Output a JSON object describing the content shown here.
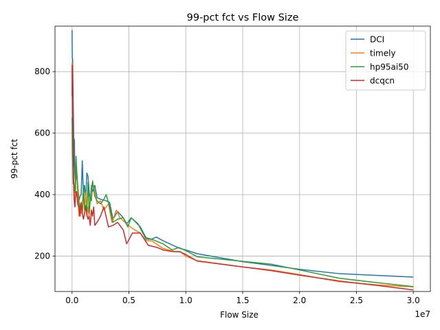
{
  "chart_data": {
    "type": "line",
    "title": "99-pct fct vs Flow Size",
    "xlabel": "Flow Size",
    "ylabel": "99-pct fct",
    "x_offset_text": "1e7",
    "xlim": [
      -1500000,
      31500000
    ],
    "ylim": [
      85,
      948
    ],
    "x_ticks": [
      0,
      5000000,
      10000000,
      15000000,
      20000000,
      25000000,
      30000000
    ],
    "x_tick_labels": [
      "0.0",
      "0.5",
      "1.0",
      "1.5",
      "2.0",
      "2.5",
      "3.0"
    ],
    "y_ticks": [
      200,
      400,
      600,
      800
    ],
    "y_tick_labels": [
      "200",
      "400",
      "600",
      "800"
    ],
    "grid": true,
    "legend_position": "top-right",
    "series": [
      {
        "name": "DCI",
        "color": "#1f77b4",
        "points": [
          [
            1000,
            935
          ],
          [
            10000,
            880
          ],
          [
            20000,
            845
          ],
          [
            50000,
            840
          ],
          [
            80000,
            760
          ],
          [
            100000,
            700
          ],
          [
            130000,
            640
          ],
          [
            150000,
            550
          ],
          [
            180000,
            490
          ],
          [
            200000,
            580
          ],
          [
            250000,
            470
          ],
          [
            300000,
            435
          ],
          [
            400000,
            470
          ],
          [
            500000,
            420
          ],
          [
            600000,
            380
          ],
          [
            700000,
            395
          ],
          [
            800000,
            400
          ],
          [
            900000,
            510
          ],
          [
            1000000,
            400
          ],
          [
            1100000,
            430
          ],
          [
            1200000,
            380
          ],
          [
            1300000,
            470
          ],
          [
            1400000,
            460
          ],
          [
            1500000,
            410
          ],
          [
            1600000,
            380
          ],
          [
            1700000,
            430
          ],
          [
            1800000,
            410
          ],
          [
            2000000,
            430
          ],
          [
            2200000,
            390
          ],
          [
            2500000,
            385
          ],
          [
            3000000,
            380
          ],
          [
            3300000,
            375
          ],
          [
            3600000,
            320
          ],
          [
            4000000,
            345
          ],
          [
            4500000,
            325
          ],
          [
            4800000,
            305
          ],
          [
            5200000,
            325
          ],
          [
            6000000,
            295
          ],
          [
            6500000,
            260
          ],
          [
            7000000,
            255
          ],
          [
            7400000,
            262
          ],
          [
            8000000,
            250
          ],
          [
            9000000,
            233
          ],
          [
            9500000,
            225
          ],
          [
            10000000,
            220
          ],
          [
            11000000,
            208
          ],
          [
            15000000,
            182
          ],
          [
            17500000,
            170
          ],
          [
            20000000,
            157
          ],
          [
            23500000,
            143
          ],
          [
            27000000,
            137
          ],
          [
            30000000,
            132
          ]
        ]
      },
      {
        "name": "timely",
        "color": "#ff7f0e",
        "points": [
          [
            1000,
            830
          ],
          [
            10000,
            810
          ],
          [
            20000,
            650
          ],
          [
            50000,
            620
          ],
          [
            80000,
            560
          ],
          [
            100000,
            540
          ],
          [
            130000,
            470
          ],
          [
            150000,
            440
          ],
          [
            180000,
            420
          ],
          [
            200000,
            370
          ],
          [
            250000,
            420
          ],
          [
            300000,
            440
          ],
          [
            400000,
            490
          ],
          [
            500000,
            400
          ],
          [
            600000,
            330
          ],
          [
            700000,
            370
          ],
          [
            800000,
            340
          ],
          [
            900000,
            340
          ],
          [
            1000000,
            400
          ],
          [
            1100000,
            350
          ],
          [
            1200000,
            410
          ],
          [
            1300000,
            330
          ],
          [
            1400000,
            360
          ],
          [
            1500000,
            330
          ],
          [
            1600000,
            380
          ],
          [
            1800000,
            440
          ],
          [
            2000000,
            410
          ],
          [
            2200000,
            370
          ],
          [
            2500000,
            380
          ],
          [
            2800000,
            350
          ],
          [
            3200000,
            370
          ],
          [
            3500000,
            310
          ],
          [
            3900000,
            350
          ],
          [
            4200000,
            325
          ],
          [
            4800000,
            305
          ],
          [
            5300000,
            290
          ],
          [
            6000000,
            275
          ],
          [
            6500000,
            250
          ],
          [
            7000000,
            250
          ],
          [
            8000000,
            225
          ],
          [
            9000000,
            215
          ],
          [
            9500000,
            215
          ],
          [
            10000000,
            200
          ],
          [
            11000000,
            185
          ],
          [
            15000000,
            165
          ],
          [
            17500000,
            155
          ],
          [
            20000000,
            140
          ],
          [
            23500000,
            117
          ],
          [
            27000000,
            106
          ],
          [
            30000000,
            100
          ]
        ]
      },
      {
        "name": "hp95ai50",
        "color": "#2ca02c",
        "points": [
          [
            1000,
            650
          ],
          [
            10000,
            620
          ],
          [
            20000,
            540
          ],
          [
            50000,
            510
          ],
          [
            80000,
            470
          ],
          [
            100000,
            435
          ],
          [
            150000,
            445
          ],
          [
            200000,
            430
          ],
          [
            250000,
            420
          ],
          [
            300000,
            405
          ],
          [
            350000,
            525
          ],
          [
            400000,
            480
          ],
          [
            500000,
            430
          ],
          [
            600000,
            380
          ],
          [
            700000,
            350
          ],
          [
            800000,
            360
          ],
          [
            900000,
            345
          ],
          [
            1000000,
            430
          ],
          [
            1100000,
            350
          ],
          [
            1200000,
            365
          ],
          [
            1300000,
            345
          ],
          [
            1400000,
            440
          ],
          [
            1500000,
            340
          ],
          [
            1600000,
            390
          ],
          [
            1700000,
            380
          ],
          [
            1800000,
            445
          ],
          [
            2000000,
            395
          ],
          [
            2200000,
            380
          ],
          [
            2500000,
            370
          ],
          [
            2800000,
            385
          ],
          [
            3000000,
            400
          ],
          [
            3300000,
            360
          ],
          [
            3600000,
            310
          ],
          [
            4000000,
            320
          ],
          [
            4500000,
            325
          ],
          [
            4900000,
            295
          ],
          [
            5200000,
            325
          ],
          [
            5800000,
            305
          ],
          [
            6500000,
            255
          ],
          [
            7000000,
            255
          ],
          [
            8000000,
            240
          ],
          [
            8800000,
            220
          ],
          [
            9400000,
            228
          ],
          [
            10000000,
            218
          ],
          [
            11000000,
            198
          ],
          [
            15000000,
            183
          ],
          [
            17500000,
            174
          ],
          [
            20000000,
            155
          ],
          [
            23500000,
            128
          ],
          [
            27000000,
            113
          ],
          [
            30000000,
            101
          ]
        ]
      },
      {
        "name": "dcqcn",
        "color": "#d62728",
        "points": [
          [
            1000,
            720
          ],
          [
            10000,
            820
          ],
          [
            20000,
            750
          ],
          [
            50000,
            650
          ],
          [
            80000,
            600
          ],
          [
            100000,
            540
          ],
          [
            130000,
            500
          ],
          [
            150000,
            420
          ],
          [
            180000,
            390
          ],
          [
            200000,
            380
          ],
          [
            250000,
            360
          ],
          [
            300000,
            390
          ],
          [
            400000,
            410
          ],
          [
            500000,
            370
          ],
          [
            600000,
            360
          ],
          [
            700000,
            330
          ],
          [
            800000,
            375
          ],
          [
            900000,
            340
          ],
          [
            1000000,
            320
          ],
          [
            1100000,
            340
          ],
          [
            1200000,
            360
          ],
          [
            1300000,
            335
          ],
          [
            1400000,
            320
          ],
          [
            1500000,
            330
          ],
          [
            1600000,
            300
          ],
          [
            1700000,
            350
          ],
          [
            1800000,
            330
          ],
          [
            1900000,
            360
          ],
          [
            2000000,
            300
          ],
          [
            2200000,
            310
          ],
          [
            2500000,
            330
          ],
          [
            2800000,
            360
          ],
          [
            3200000,
            295
          ],
          [
            3600000,
            300
          ],
          [
            4000000,
            310
          ],
          [
            4500000,
            285
          ],
          [
            4800000,
            240
          ],
          [
            5300000,
            275
          ],
          [
            6000000,
            275
          ],
          [
            6700000,
            235
          ],
          [
            7500000,
            228
          ],
          [
            8000000,
            220
          ],
          [
            8800000,
            215
          ],
          [
            9500000,
            214
          ],
          [
            10000000,
            205
          ],
          [
            11000000,
            184
          ],
          [
            15000000,
            165
          ],
          [
            17500000,
            153
          ],
          [
            20000000,
            138
          ],
          [
            23500000,
            119
          ],
          [
            27000000,
            104
          ],
          [
            30000000,
            90
          ]
        ]
      }
    ]
  }
}
